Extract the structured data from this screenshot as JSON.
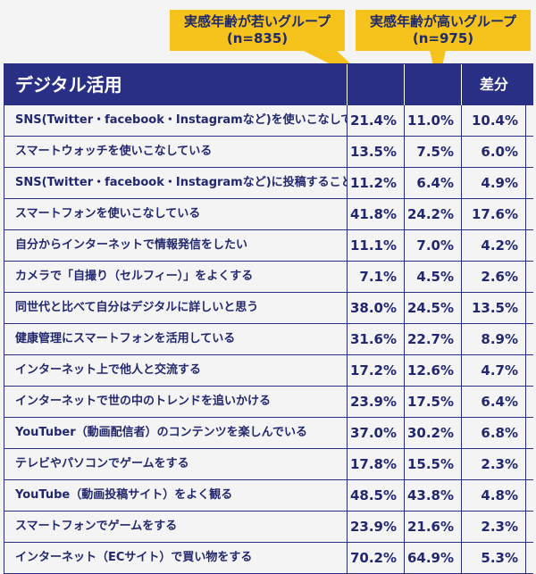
{
  "chart_data": {
    "type": "table",
    "title": "デジタル活用",
    "columns": [
      "実感年齢が若いグループ(n=835)",
      "実感年齢が高いグループ(n=975)",
      "差分"
    ],
    "series": [
      {
        "name": "実感年齢が若いグループ(n=835)",
        "values": [
          21.4,
          13.5,
          11.2,
          41.8,
          11.1,
          7.1,
          38.0,
          31.6,
          17.2,
          23.9,
          37.0,
          17.8,
          48.5,
          23.9,
          70.2
        ]
      },
      {
        "name": "実感年齢が高いグループ(n=975)",
        "values": [
          11.0,
          7.5,
          6.4,
          24.2,
          7.0,
          4.5,
          24.5,
          22.7,
          12.6,
          17.5,
          30.2,
          15.5,
          43.8,
          21.6,
          64.9
        ]
      },
      {
        "name": "差分",
        "values": [
          10.4,
          6.0,
          4.9,
          17.6,
          4.2,
          2.6,
          13.5,
          8.9,
          4.7,
          6.4,
          6.8,
          2.3,
          4.8,
          2.3,
          5.3
        ]
      }
    ],
    "rows": [
      {
        "label": "SNS(Twitter・facebook・Instagramなど)を使いこなしている",
        "young": "21.4%",
        "old": "11.0%",
        "diff": "10.4%"
      },
      {
        "label": "スマートウォッチを使いこなしている",
        "young": "13.5%",
        "old": "7.5%",
        "diff": "6.0%"
      },
      {
        "label": "SNS(Twitter・facebook・Instagramなど)に投稿することが多い",
        "young": "11.2%",
        "old": "6.4%",
        "diff": "4.9%"
      },
      {
        "label": "スマートフォンを使いこなしている",
        "young": "41.8%",
        "old": "24.2%",
        "diff": "17.6%"
      },
      {
        "label": "自分からインターネットで情報発信をしたい",
        "young": "11.1%",
        "old": "7.0%",
        "diff": "4.2%"
      },
      {
        "label": "カメラで「自撮り（セルフィー）」をよくする",
        "young": "7.1%",
        "old": "4.5%",
        "diff": "2.6%"
      },
      {
        "label": "同世代と比べて自分はデジタルに詳しいと思う",
        "young": "38.0%",
        "old": "24.5%",
        "diff": "13.5%"
      },
      {
        "label": "健康管理にスマートフォンを活用している",
        "young": "31.6%",
        "old": "22.7%",
        "diff": "8.9%"
      },
      {
        "label": "インターネット上で他人と交流する",
        "young": "17.2%",
        "old": "12.6%",
        "diff": "4.7%"
      },
      {
        "label": "インターネットで世の中のトレンドを追いかける",
        "young": "23.9%",
        "old": "17.5%",
        "diff": "6.4%"
      },
      {
        "label": "YouTuber（動画配信者）のコンテンツを楽しんでいる",
        "young": "37.0%",
        "old": "30.2%",
        "diff": "6.8%"
      },
      {
        "label": "テレビやパソコンでゲームをする",
        "young": "17.8%",
        "old": "15.5%",
        "diff": "2.3%"
      },
      {
        "label": "YouTube（動画投稿サイト）をよく観る",
        "young": "48.5%",
        "old": "43.8%",
        "diff": "4.8%"
      },
      {
        "label": "スマートフォンでゲームをする",
        "young": "23.9%",
        "old": "21.6%",
        "diff": "2.3%"
      },
      {
        "label": "インターネット（ECサイト）で買い物をする",
        "young": "70.2%",
        "old": "64.9%",
        "diff": "5.3%"
      }
    ]
  },
  "callouts": {
    "young": {
      "line1": "実感年齢が若いグループ",
      "line2": "(n=835)"
    },
    "old": {
      "line1": "実感年齢が高いグループ",
      "line2": "(n=975)"
    }
  },
  "header": {
    "section": "デジタル活用",
    "diff": "差分"
  },
  "colors": {
    "navy": "#2a2f86",
    "callout": "#f6c21c",
    "background": "#f4f4f4"
  }
}
